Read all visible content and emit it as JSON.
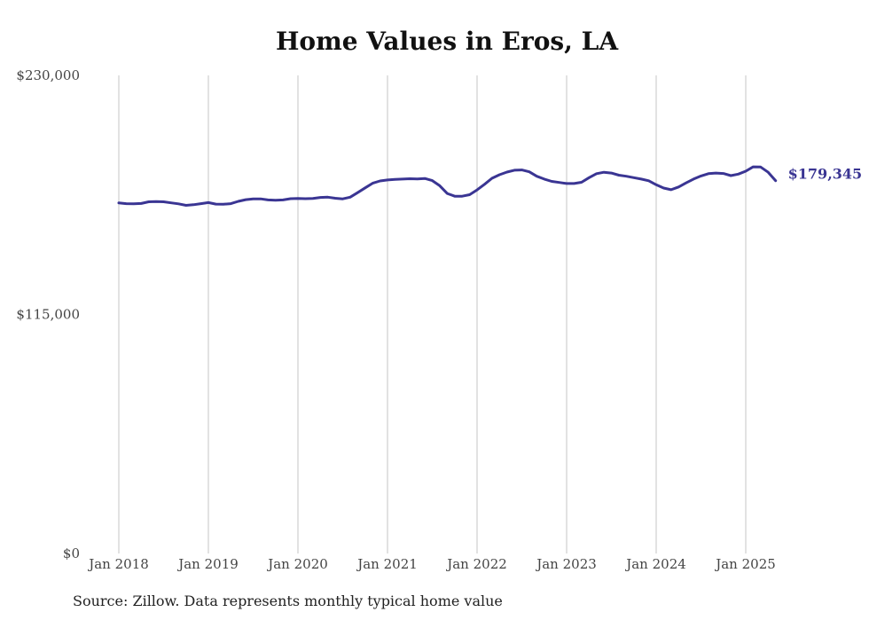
{
  "chart_data": {
    "type": "line",
    "title": "Home Values in Eros, LA",
    "source_note": "Source: Zillow. Data represents monthly typical home value",
    "ylim": [
      0,
      230000
    ],
    "yticks": [
      {
        "value": 0,
        "label": "$0"
      },
      {
        "value": 115000,
        "label": "$115,000"
      },
      {
        "value": 230000,
        "label": "$230,000"
      }
    ],
    "xticks": [
      {
        "value": "2018-01",
        "label": "Jan 2018"
      },
      {
        "value": "2019-01",
        "label": "Jan 2019"
      },
      {
        "value": "2020-01",
        "label": "Jan 2020"
      },
      {
        "value": "2021-01",
        "label": "Jan 2021"
      },
      {
        "value": "2022-01",
        "label": "Jan 2022"
      },
      {
        "value": "2023-01",
        "label": "Jan 2023"
      },
      {
        "value": "2024-01",
        "label": "Jan 2024"
      },
      {
        "value": "2025-01",
        "label": "Jan 2025"
      }
    ],
    "grid": "vertical",
    "series": [
      {
        "color": "#3a3593",
        "last_value_label": "$179,345",
        "points": [
          [
            "2018-01",
            168700
          ],
          [
            "2018-02",
            168300
          ],
          [
            "2018-03",
            168200
          ],
          [
            "2018-04",
            168400
          ],
          [
            "2018-05",
            169200
          ],
          [
            "2018-06",
            169300
          ],
          [
            "2018-07",
            169200
          ],
          [
            "2018-08",
            168700
          ],
          [
            "2018-09",
            168200
          ],
          [
            "2018-10",
            167500
          ],
          [
            "2018-11",
            167800
          ],
          [
            "2018-12",
            168300
          ],
          [
            "2019-01",
            168800
          ],
          [
            "2019-02",
            168100
          ],
          [
            "2019-03",
            168000
          ],
          [
            "2019-04",
            168300
          ],
          [
            "2019-05",
            169400
          ],
          [
            "2019-06",
            170200
          ],
          [
            "2019-07",
            170600
          ],
          [
            "2019-08",
            170600
          ],
          [
            "2019-09",
            170100
          ],
          [
            "2019-10",
            169900
          ],
          [
            "2019-11",
            170100
          ],
          [
            "2019-12",
            170700
          ],
          [
            "2020-01",
            170800
          ],
          [
            "2020-02",
            170700
          ],
          [
            "2020-03",
            170800
          ],
          [
            "2020-04",
            171300
          ],
          [
            "2020-05",
            171400
          ],
          [
            "2020-06",
            170900
          ],
          [
            "2020-07",
            170600
          ],
          [
            "2020-08",
            171400
          ],
          [
            "2020-09",
            173600
          ],
          [
            "2020-10",
            175900
          ],
          [
            "2020-11",
            178100
          ],
          [
            "2020-12",
            179200
          ],
          [
            "2021-01",
            179700
          ],
          [
            "2021-02",
            180000
          ],
          [
            "2021-03",
            180100
          ],
          [
            "2021-04",
            180300
          ],
          [
            "2021-05",
            180200
          ],
          [
            "2021-06",
            180400
          ],
          [
            "2021-07",
            179400
          ],
          [
            "2021-08",
            176900
          ],
          [
            "2021-09",
            173200
          ],
          [
            "2021-10",
            171900
          ],
          [
            "2021-11",
            171900
          ],
          [
            "2021-12",
            172600
          ],
          [
            "2022-01",
            174900
          ],
          [
            "2022-02",
            177600
          ],
          [
            "2022-03",
            180500
          ],
          [
            "2022-04",
            182200
          ],
          [
            "2022-05",
            183500
          ],
          [
            "2022-06",
            184400
          ],
          [
            "2022-07",
            184500
          ],
          [
            "2022-08",
            183600
          ],
          [
            "2022-09",
            181500
          ],
          [
            "2022-10",
            180100
          ],
          [
            "2022-11",
            179000
          ],
          [
            "2022-12",
            178500
          ],
          [
            "2023-01",
            178000
          ],
          [
            "2023-02",
            178000
          ],
          [
            "2023-03",
            178600
          ],
          [
            "2023-04",
            180800
          ],
          [
            "2023-05",
            182700
          ],
          [
            "2023-06",
            183400
          ],
          [
            "2023-07",
            183000
          ],
          [
            "2023-08",
            182000
          ],
          [
            "2023-09",
            181500
          ],
          [
            "2023-10",
            180800
          ],
          [
            "2023-11",
            180100
          ],
          [
            "2023-12",
            179300
          ],
          [
            "2024-01",
            177400
          ],
          [
            "2024-02",
            175800
          ],
          [
            "2024-03",
            175000
          ],
          [
            "2024-04",
            176300
          ],
          [
            "2024-05",
            178300
          ],
          [
            "2024-06",
            180100
          ],
          [
            "2024-07",
            181600
          ],
          [
            "2024-08",
            182700
          ],
          [
            "2024-09",
            183000
          ],
          [
            "2024-10",
            182800
          ],
          [
            "2024-11",
            181800
          ],
          [
            "2024-12",
            182500
          ],
          [
            "2025-01",
            183900
          ],
          [
            "2025-02",
            186000
          ],
          [
            "2025-03",
            185900
          ],
          [
            "2025-04",
            183400
          ],
          [
            "2025-05",
            179345
          ]
        ]
      }
    ]
  }
}
